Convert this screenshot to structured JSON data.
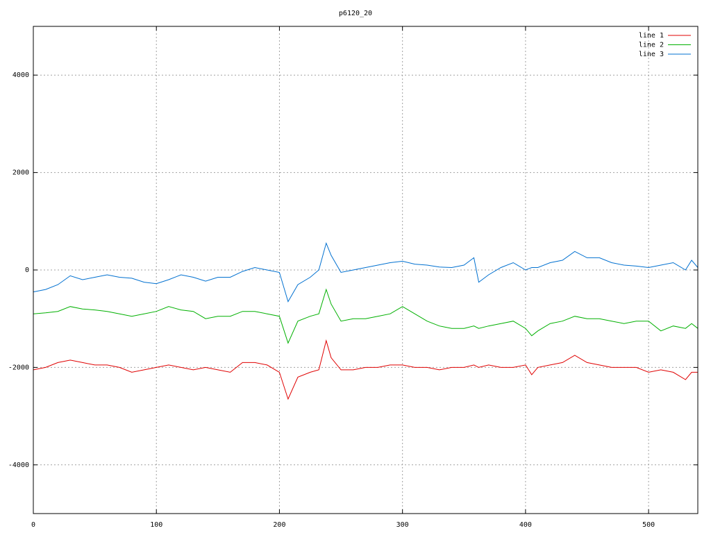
{
  "chart_data": {
    "type": "line",
    "title": "p6120_20",
    "x": [
      0,
      10,
      20,
      30,
      40,
      50,
      60,
      70,
      80,
      90,
      100,
      110,
      120,
      130,
      140,
      150,
      160,
      170,
      180,
      190,
      200,
      207,
      215,
      225,
      232,
      238,
      242,
      250,
      260,
      270,
      280,
      290,
      300,
      310,
      320,
      330,
      340,
      350,
      358,
      362,
      370,
      380,
      390,
      400,
      405,
      410,
      420,
      430,
      440,
      450,
      460,
      470,
      480,
      490,
      500,
      510,
      520,
      530,
      535,
      540
    ],
    "series": [
      {
        "name": "line 1",
        "color": "#e00000",
        "values": [
          -2050,
          -2000,
          -1900,
          -1850,
          -1900,
          -1950,
          -1950,
          -2000,
          -2100,
          -2050,
          -2000,
          -1950,
          -2000,
          -2050,
          -2000,
          -2050,
          -2100,
          -1900,
          -1900,
          -1950,
          -2100,
          -2650,
          -2200,
          -2100,
          -2050,
          -1450,
          -1800,
          -2050,
          -2050,
          -2000,
          -2000,
          -1950,
          -1950,
          -2000,
          -2000,
          -2050,
          -2000,
          -2000,
          -1950,
          -2000,
          -1950,
          -2000,
          -2000,
          -1950,
          -2150,
          -2000,
          -1950,
          -1900,
          -1750,
          -1900,
          -1950,
          -2000,
          -2000,
          -2000,
          -2100,
          -2050,
          -2100,
          -2250,
          -2100,
          -2100
        ]
      },
      {
        "name": "line 2",
        "color": "#00b000",
        "values": [
          -900,
          -880,
          -850,
          -750,
          -800,
          -820,
          -850,
          -900,
          -950,
          -900,
          -850,
          -750,
          -820,
          -850,
          -1000,
          -950,
          -950,
          -850,
          -850,
          -900,
          -950,
          -1500,
          -1050,
          -950,
          -900,
          -400,
          -700,
          -1050,
          -1000,
          -1000,
          -950,
          -900,
          -750,
          -900,
          -1050,
          -1150,
          -1200,
          -1200,
          -1150,
          -1200,
          -1150,
          -1100,
          -1050,
          -1200,
          -1350,
          -1250,
          -1100,
          -1050,
          -950,
          -1000,
          -1000,
          -1050,
          -1100,
          -1050,
          -1050,
          -1250,
          -1150,
          -1200,
          -1100,
          -1200
        ]
      },
      {
        "name": "line 3",
        "color": "#0070d0",
        "values": [
          -450,
          -400,
          -300,
          -120,
          -200,
          -150,
          -100,
          -150,
          -170,
          -250,
          -280,
          -200,
          -100,
          -150,
          -230,
          -150,
          -150,
          -30,
          50,
          0,
          -50,
          -650,
          -300,
          -150,
          0,
          550,
          300,
          -50,
          0,
          50,
          100,
          150,
          180,
          120,
          100,
          60,
          50,
          100,
          250,
          -250,
          -100,
          50,
          150,
          0,
          50,
          50,
          150,
          200,
          380,
          250,
          250,
          150,
          100,
          80,
          50,
          100,
          150,
          0,
          200,
          50
        ]
      }
    ],
    "xlim": [
      0,
      540
    ],
    "xticks": [
      0,
      100,
      200,
      300,
      400,
      500
    ],
    "ylim": [
      -5000,
      5000
    ],
    "yticks": [
      -4000,
      -2000,
      0,
      2000,
      4000
    ],
    "grid": true,
    "legend": "top-right"
  }
}
